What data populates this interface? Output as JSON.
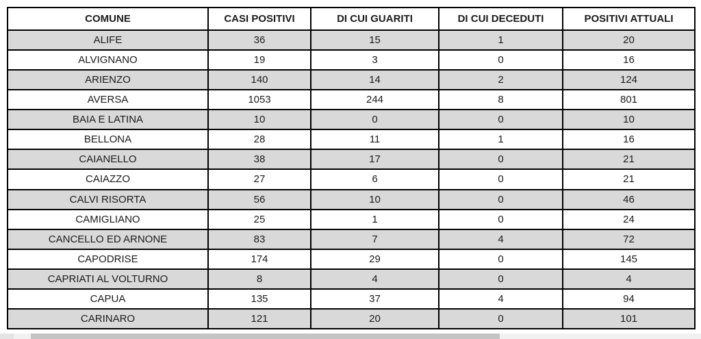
{
  "table": {
    "columns": [
      "COMUNE",
      "CASI POSITIVI",
      "DI CUI GUARITI",
      "DI CUI DECEDUTI",
      "POSITIVI ATTUALI"
    ],
    "rows": [
      [
        "ALIFE",
        "36",
        "15",
        "1",
        "20"
      ],
      [
        "ALVIGNANO",
        "19",
        "3",
        "0",
        "16"
      ],
      [
        "ARIENZO",
        "140",
        "14",
        "2",
        "124"
      ],
      [
        "AVERSA",
        "1053",
        "244",
        "8",
        "801"
      ],
      [
        "BAIA E LATINA",
        "10",
        "0",
        "0",
        "10"
      ],
      [
        "BELLONA",
        "28",
        "11",
        "1",
        "16"
      ],
      [
        "CAIANELLO",
        "38",
        "17",
        "0",
        "21"
      ],
      [
        "CAIAZZO",
        "27",
        "6",
        "0",
        "21"
      ],
      [
        "CALVI RISORTA",
        "56",
        "10",
        "0",
        "46"
      ],
      [
        "CAMIGLIANO",
        "25",
        "1",
        "0",
        "24"
      ],
      [
        "CANCELLO ED ARNONE",
        "83",
        "7",
        "4",
        "72"
      ],
      [
        "CAPODRISE",
        "174",
        "29",
        "0",
        "145"
      ],
      [
        "CAPRIATI AL VOLTURNO",
        "8",
        "4",
        "0",
        "4"
      ],
      [
        "CAPUA",
        "135",
        "37",
        "4",
        "94"
      ],
      [
        "CARINARO",
        "121",
        "20",
        "0",
        "101"
      ]
    ],
    "colors": {
      "shaded_row_bg": "#d9d9d9",
      "plain_row_bg": "#ffffff",
      "header_bg": "#ffffff",
      "border": "#000000",
      "text": "#1b1b1b"
    }
  },
  "scrollbar": {
    "track_color": "#f1f1f1",
    "thumb_color": "#c4c4c4"
  }
}
